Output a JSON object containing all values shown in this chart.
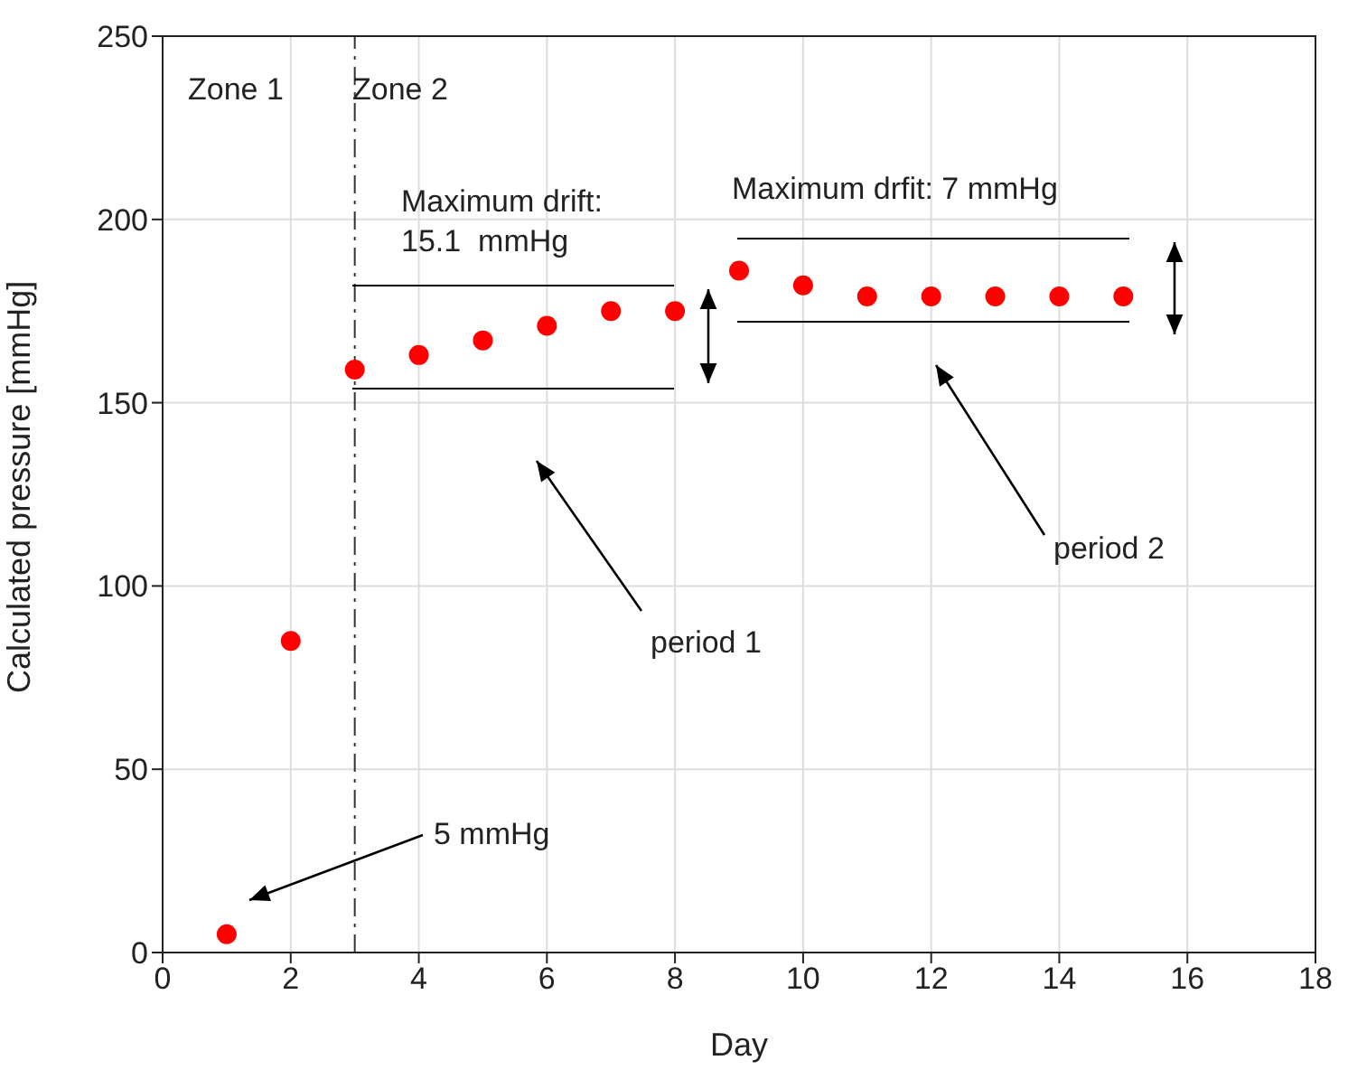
{
  "chart_data": {
    "type": "scatter",
    "xlabel": "Day",
    "ylabel": "Calculated pressure [mmHg]",
    "x": [
      1,
      2,
      3,
      4,
      5,
      6,
      7,
      8,
      9,
      10,
      11,
      12,
      13,
      14,
      15
    ],
    "series": [
      {
        "color": "#ff0000",
        "values": [
          5,
          85,
          159,
          163,
          167,
          171,
          175,
          175,
          186,
          182,
          179,
          179,
          179,
          179,
          179
        ]
      }
    ],
    "xlim": [
      0,
      18
    ],
    "xticks": [
      0,
      2,
      4,
      6,
      8,
      10,
      12,
      14,
      16,
      18
    ],
    "ylim": [
      0,
      250
    ],
    "yticks": [
      0,
      50,
      100,
      150,
      200,
      250
    ],
    "grid": true,
    "marker": "circle",
    "ref_lines": [
      {
        "axis": "x",
        "value": 3,
        "line_style": "dashed",
        "color": "#333333"
      }
    ],
    "annotations": [
      "Zone 1",
      "Zone 2",
      "Maximum drift:\n15.1  mmHg",
      "Maximum drfit: 7 mmHg",
      "period 1",
      "period 2",
      "5 mmHg"
    ]
  }
}
